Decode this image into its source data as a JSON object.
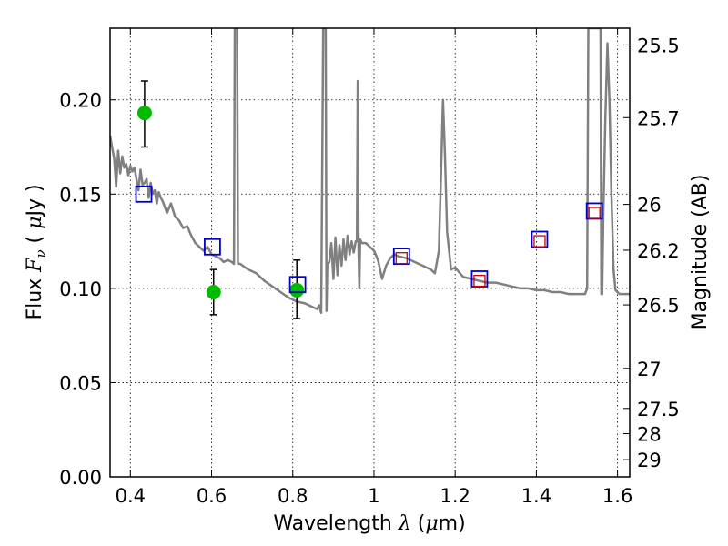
{
  "chart_data": {
    "type": "scatter",
    "xlabel": {
      "prefix": "Wavelength  ",
      "var": "λ",
      "mid": " (",
      "unit": "μ",
      "suffix": "m)"
    },
    "ylabel": {
      "prefix": "Flux  ",
      "var": "F",
      "sub": "ν",
      "mid": "  ( ",
      "unit": "μ",
      "suffix": "Jy )"
    },
    "y2label": "Magnitude (AB)",
    "xlim": [
      0.35,
      1.63
    ],
    "ylim": [
      0.0,
      0.238
    ],
    "x_ticks": [
      0.4,
      0.6,
      0.8,
      1.0,
      1.2,
      1.4,
      1.6
    ],
    "x_tick_labels": [
      "0.4",
      "0.6",
      "0.8",
      "1",
      "1.2",
      "1.4",
      "1.6"
    ],
    "y_ticks": [
      0.0,
      0.05,
      0.1,
      0.15,
      0.2
    ],
    "y_tick_labels": [
      "0.00",
      "0.05",
      "0.10",
      "0.15",
      "0.20"
    ],
    "mag_tick_labels": [
      "25.5",
      "25.7",
      "26",
      "26.2",
      "26.5",
      "27",
      "27.5",
      "28",
      "29"
    ],
    "grid": true,
    "colors": {
      "model": "#808080",
      "observed": "#00bb00",
      "model_phot": "#0000cc",
      "alt_phot": "#cc0000",
      "errorbar": "#000000"
    },
    "series": [
      {
        "role": "model_spectrum",
        "x": [
          0.35,
          0.355,
          0.36,
          0.365,
          0.37,
          0.375,
          0.38,
          0.385,
          0.39,
          0.395,
          0.4,
          0.405,
          0.41,
          0.415,
          0.42,
          0.425,
          0.43,
          0.435,
          0.44,
          0.445,
          0.45,
          0.455,
          0.46,
          0.465,
          0.47,
          0.475,
          0.48,
          0.49,
          0.5,
          0.51,
          0.52,
          0.53,
          0.54,
          0.55,
          0.56,
          0.57,
          0.58,
          0.59,
          0.6,
          0.61,
          0.62,
          0.63,
          0.64,
          0.65,
          0.655,
          0.657,
          0.659,
          0.661,
          0.663,
          0.665,
          0.67,
          0.69,
          0.71,
          0.73,
          0.75,
          0.77,
          0.79,
          0.81,
          0.83,
          0.85,
          0.86,
          0.865,
          0.87,
          0.875,
          0.877,
          0.879,
          0.881,
          0.883,
          0.885,
          0.89,
          0.895,
          0.9,
          0.905,
          0.91,
          0.915,
          0.92,
          0.925,
          0.93,
          0.935,
          0.94,
          0.945,
          0.95,
          0.955,
          0.958,
          0.96,
          0.962,
          0.964,
          0.966,
          0.97,
          0.98,
          0.99,
          1.0,
          1.01,
          1.02,
          1.03,
          1.04,
          1.05,
          1.06,
          1.08,
          1.1,
          1.12,
          1.14,
          1.15,
          1.16,
          1.165,
          1.17,
          1.175,
          1.18,
          1.19,
          1.2,
          1.22,
          1.24,
          1.26,
          1.28,
          1.3,
          1.32,
          1.34,
          1.36,
          1.38,
          1.4,
          1.42,
          1.44,
          1.46,
          1.48,
          1.5,
          1.52,
          1.525,
          1.528,
          1.53,
          1.532,
          1.54,
          1.55,
          1.555,
          1.558,
          1.56,
          1.562,
          1.565,
          1.57,
          1.575,
          1.58,
          1.585,
          1.59,
          1.595,
          1.6,
          1.605,
          1.61,
          1.63
        ],
        "y": [
          0.181,
          0.175,
          0.169,
          0.154,
          0.173,
          0.161,
          0.17,
          0.164,
          0.166,
          0.16,
          0.165,
          0.162,
          0.164,
          0.158,
          0.152,
          0.163,
          0.155,
          0.156,
          0.158,
          0.148,
          0.156,
          0.15,
          0.152,
          0.145,
          0.151,
          0.148,
          0.146,
          0.14,
          0.145,
          0.138,
          0.136,
          0.132,
          0.133,
          0.128,
          0.124,
          0.122,
          0.12,
          0.122,
          0.118,
          0.117,
          0.116,
          0.114,
          0.115,
          0.114,
          0.113,
          0.238,
          0.238,
          0.238,
          0.238,
          0.113,
          0.113,
          0.11,
          0.108,
          0.104,
          0.101,
          0.098,
          0.095,
          0.093,
          0.092,
          0.09,
          0.089,
          0.091,
          0.087,
          0.238,
          0.238,
          0.238,
          0.238,
          0.088,
          0.113,
          0.114,
          0.124,
          0.105,
          0.127,
          0.107,
          0.123,
          0.112,
          0.126,
          0.115,
          0.128,
          0.118,
          0.125,
          0.119,
          0.125,
          0.125,
          0.21,
          0.12,
          0.1,
          0.126,
          0.124,
          0.124,
          0.122,
          0.12,
          0.115,
          0.105,
          0.112,
          0.116,
          0.118,
          0.117,
          0.116,
          0.114,
          0.112,
          0.11,
          0.108,
          0.12,
          0.16,
          0.2,
          0.17,
          0.13,
          0.11,
          0.111,
          0.106,
          0.105,
          0.104,
          0.103,
          0.103,
          0.102,
          0.101,
          0.1,
          0.1,
          0.099,
          0.099,
          0.098,
          0.098,
          0.097,
          0.097,
          0.097,
          0.1,
          0.238,
          0.238,
          0.238,
          0.238,
          0.238,
          0.238,
          0.238,
          0.097,
          0.097,
          0.14,
          0.19,
          0.23,
          0.2,
          0.15,
          0.11,
          0.099,
          0.098,
          0.097,
          0.097,
          0.097
        ]
      },
      {
        "role": "observed_photometry",
        "x": [
          0.435,
          0.605,
          0.81
        ],
        "y": [
          0.193,
          0.098,
          0.099
        ],
        "yerr_low": [
          0.175,
          0.086,
          0.084
        ],
        "yerr_high": [
          0.21,
          0.11,
          0.115
        ]
      },
      {
        "role": "model_photometry",
        "x": [
          0.433,
          0.602,
          0.812,
          1.068,
          1.26,
          1.408,
          1.543
        ],
        "y": [
          0.15,
          0.122,
          0.102,
          0.117,
          0.105,
          0.126,
          0.141
        ]
      },
      {
        "role": "alt_photometry",
        "x": [
          1.068,
          1.26,
          1.408,
          1.543
        ],
        "y": [
          0.116,
          0.104,
          0.125,
          0.14
        ]
      }
    ]
  }
}
